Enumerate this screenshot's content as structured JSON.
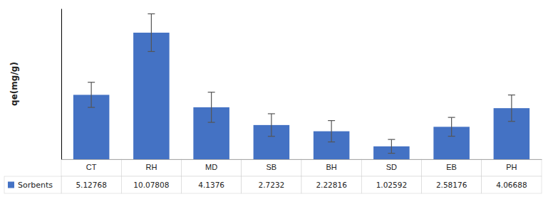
{
  "chart_data": {
    "type": "bar",
    "ylabel": "qe(mg/g)",
    "categories": [
      "CT",
      "RH",
      "MD",
      "SB",
      "BH",
      "SD",
      "EB",
      "PH"
    ],
    "series": [
      {
        "name": "Sorbents",
        "color": "#4472C4",
        "values": [
          5.12768,
          10.07808,
          4.1376,
          2.7232,
          2.22816,
          1.02592,
          2.58176,
          4.06688
        ],
        "errors": [
          1.0,
          1.5,
          1.2,
          0.9,
          0.85,
          0.55,
          0.75,
          1.05
        ]
      }
    ],
    "ylim": [
      0,
      12
    ],
    "yticks": [],
    "tick_labels": "x",
    "data_labels": true,
    "legend": "bottom",
    "grid": false
  }
}
